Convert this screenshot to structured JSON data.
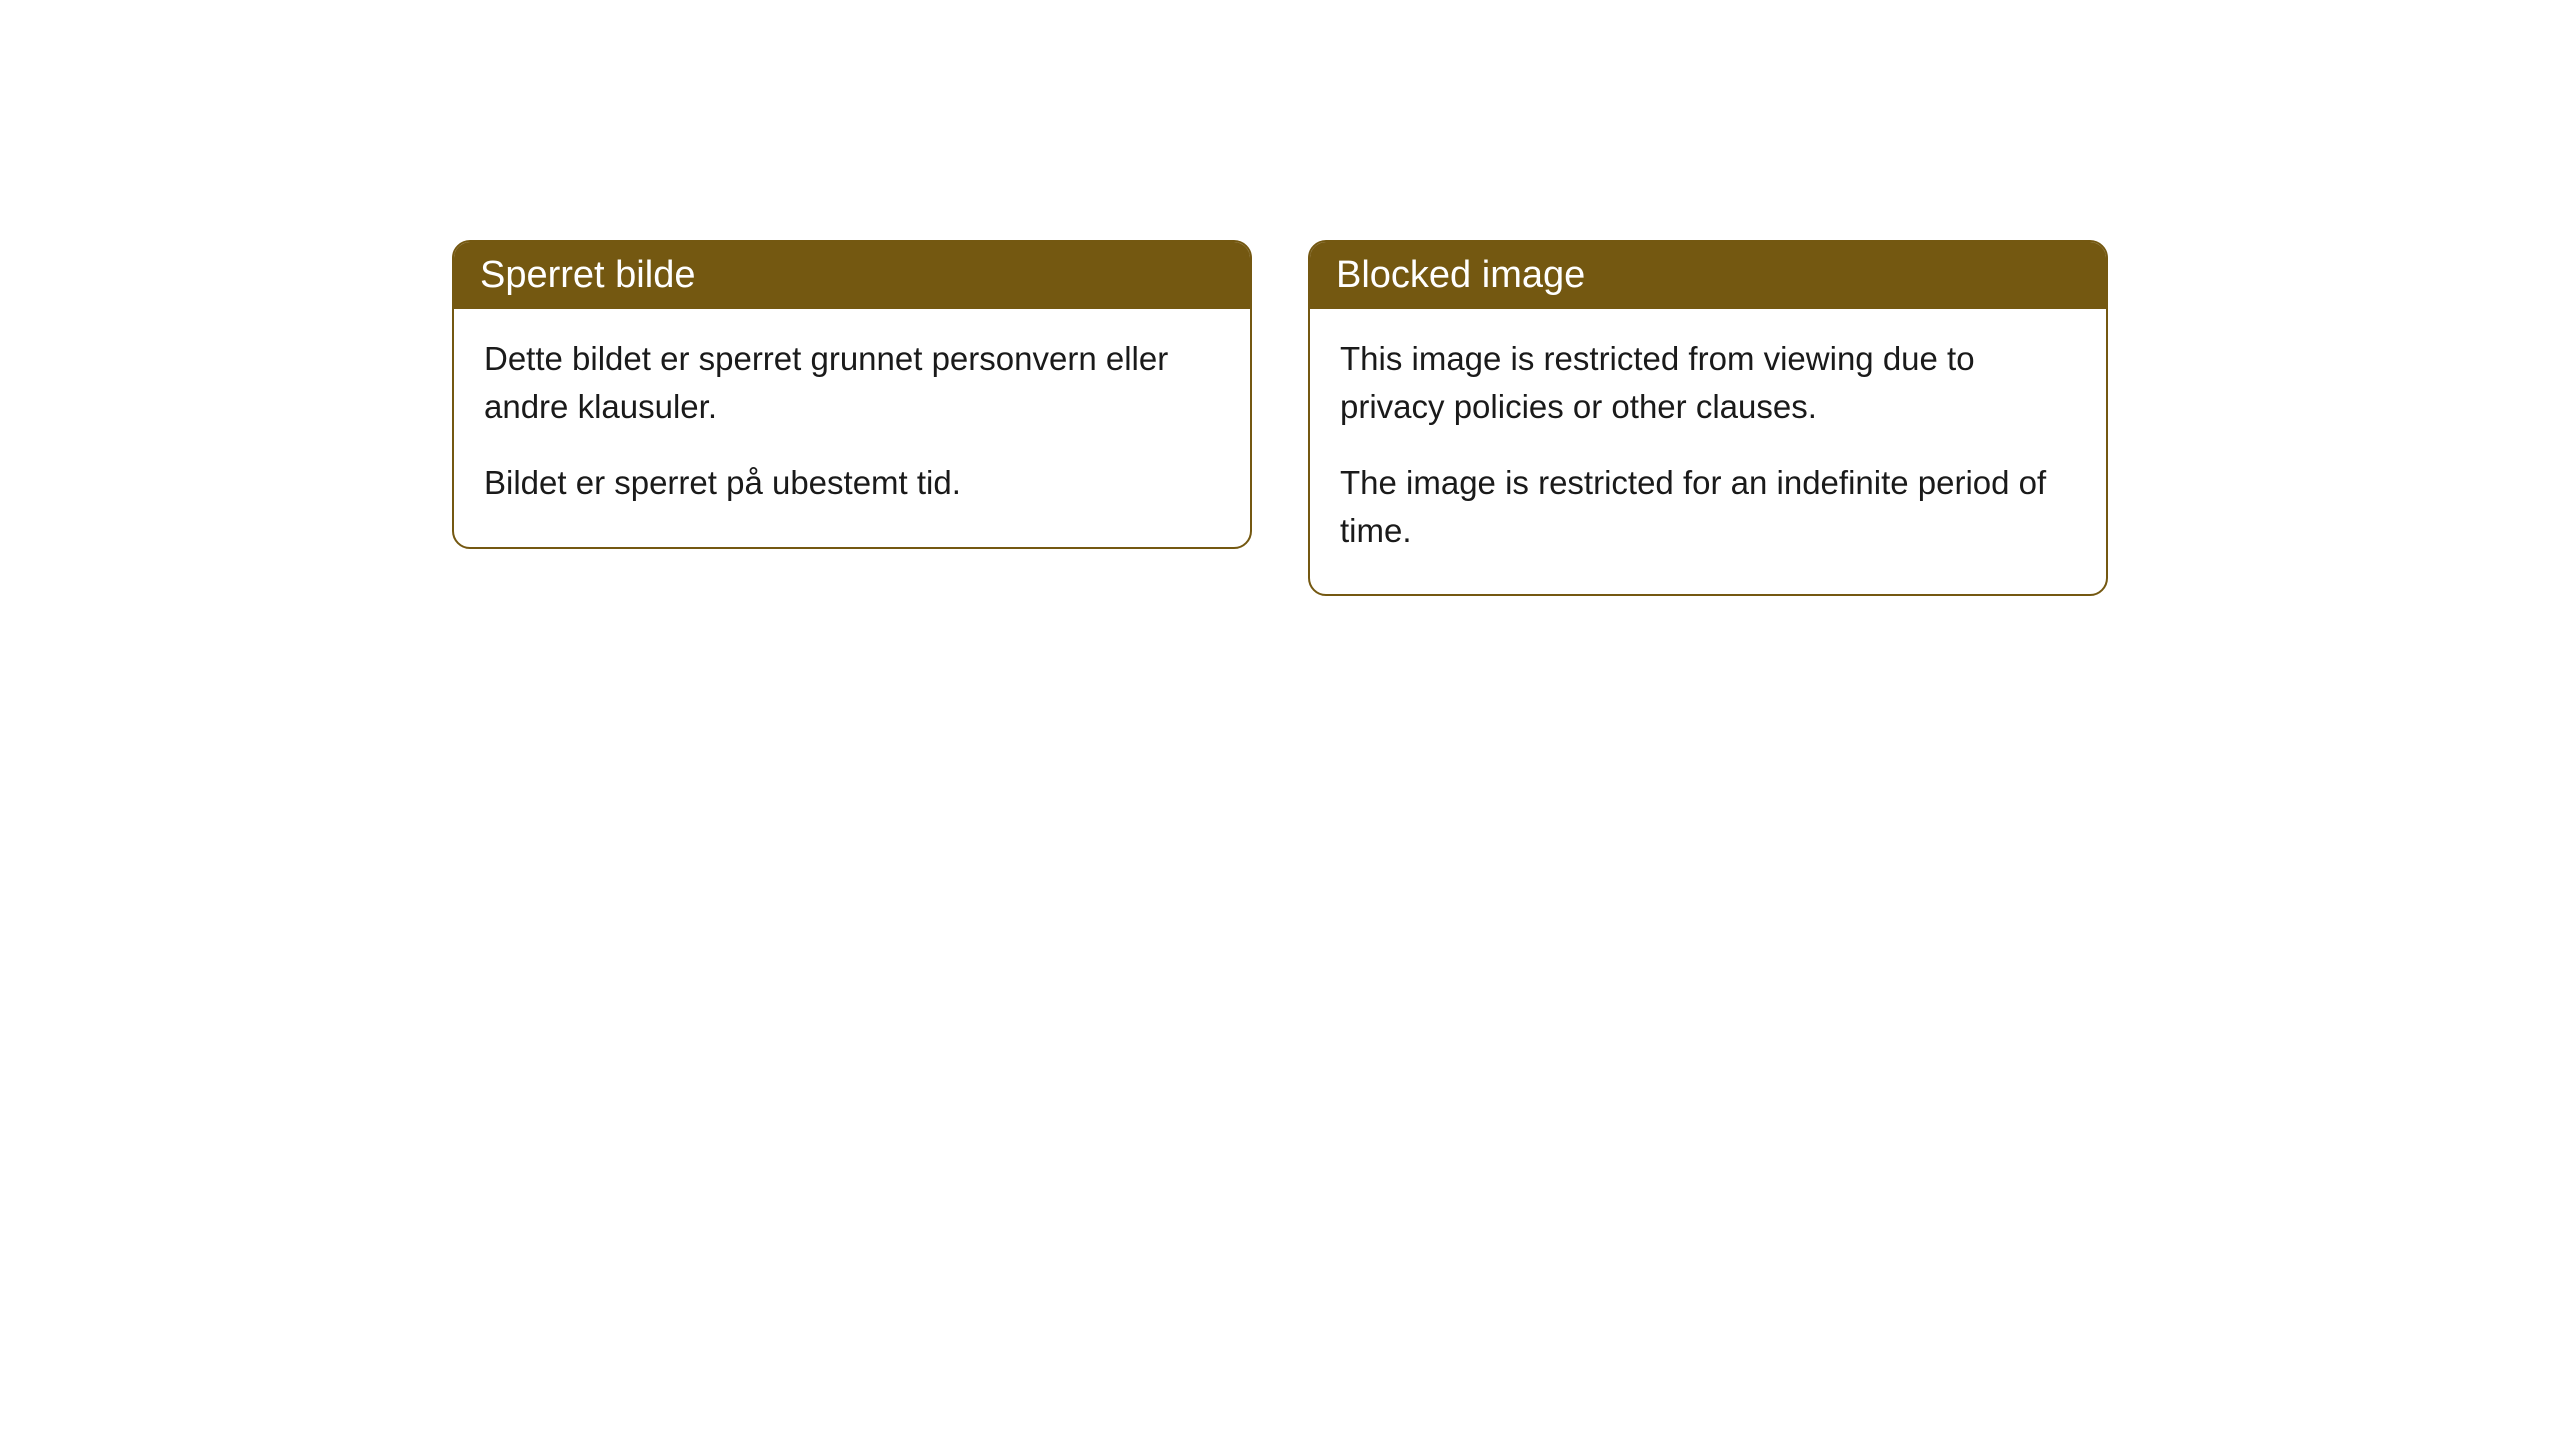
{
  "cards": [
    {
      "title": "Sperret bilde",
      "paragraph1": "Dette bildet er sperret grunnet personvern eller andre klausuler.",
      "paragraph2": "Bildet er sperret på ubestemt tid."
    },
    {
      "title": "Blocked image",
      "paragraph1": "This image is restricted from viewing due to privacy policies or other clauses.",
      "paragraph2": "The image is restricted for an indefinite period of time."
    }
  ],
  "colors": {
    "header_bg": "#745811",
    "header_text": "#ffffff",
    "border": "#745811",
    "body_bg": "#ffffff",
    "body_text": "#1a1a1a"
  },
  "typography": {
    "header_fontsize": 38,
    "body_fontsize": 33
  }
}
